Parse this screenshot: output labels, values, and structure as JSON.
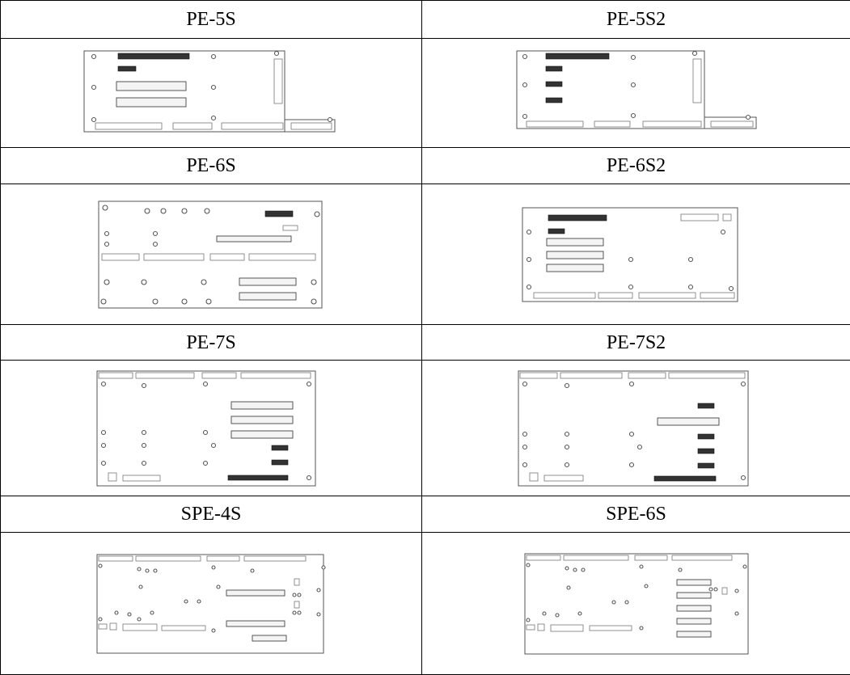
{
  "boards": [
    {
      "id": "pe-5s",
      "label": "PE-5S"
    },
    {
      "id": "pe-5s2",
      "label": "PE-5S2"
    },
    {
      "id": "pe-6s",
      "label": "PE-6S"
    },
    {
      "id": "pe-6s2",
      "label": "PE-6S2"
    },
    {
      "id": "pe-7s",
      "label": "PE-7S"
    },
    {
      "id": "pe-7s2",
      "label": "PE-7S2"
    },
    {
      "id": "spe-4s",
      "label": "SPE-4S"
    },
    {
      "id": "spe-6s",
      "label": "SPE-6S"
    }
  ]
}
